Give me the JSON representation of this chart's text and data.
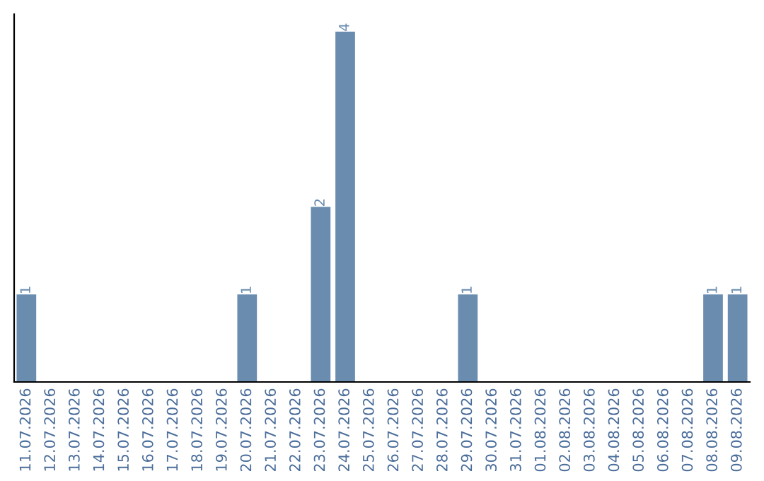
{
  "chart_data": {
    "type": "bar",
    "categories": [
      "11.07.2026",
      "12.07.2026",
      "13.07.2026",
      "14.07.2026",
      "15.07.2026",
      "16.07.2026",
      "17.07.2026",
      "18.07.2026",
      "19.07.2026",
      "20.07.2026",
      "21.07.2026",
      "22.07.2026",
      "23.07.2026",
      "24.07.2026",
      "25.07.2026",
      "26.07.2026",
      "27.07.2026",
      "28.07.2026",
      "29.07.2026",
      "30.07.2026",
      "31.07.2026",
      "01.08.2026",
      "02.08.2026",
      "03.08.2026",
      "04.08.2026",
      "05.08.2026",
      "06.08.2026",
      "07.08.2026",
      "08.08.2026",
      "09.08.2026"
    ],
    "values": [
      1,
      0,
      0,
      0,
      0,
      0,
      0,
      0,
      0,
      1,
      0,
      0,
      2,
      4,
      0,
      0,
      0,
      0,
      1,
      0,
      0,
      0,
      0,
      0,
      0,
      0,
      0,
      0,
      1,
      1
    ],
    "value_labels": [
      "1",
      null,
      null,
      null,
      null,
      null,
      null,
      null,
      null,
      "1",
      null,
      null,
      "2",
      "4",
      null,
      null,
      null,
      null,
      "1",
      null,
      null,
      null,
      null,
      null,
      null,
      null,
      null,
      null,
      "1",
      "1"
    ],
    "color": "#6a8caf",
    "ylim": [
      0,
      4.2
    ],
    "tick_labels": "x",
    "grid": false
  }
}
